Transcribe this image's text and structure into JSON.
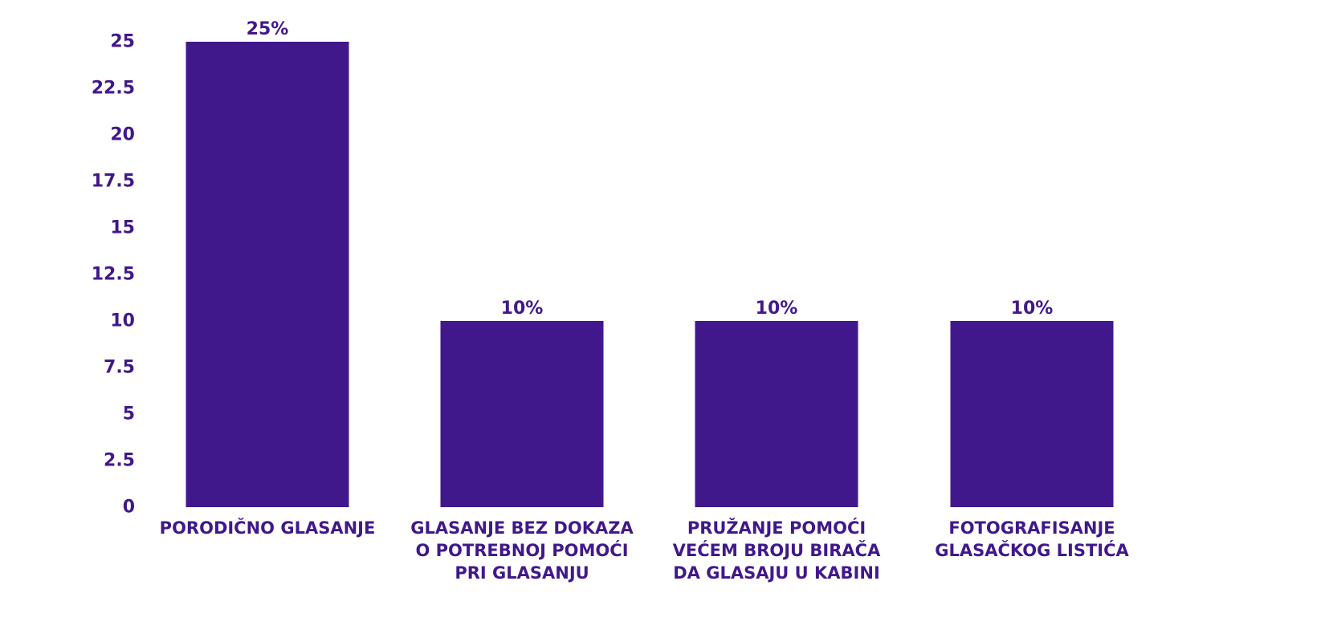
{
  "chart_data": {
    "type": "bar",
    "categories": [
      [
        "PORODIČNO GLASANJE"
      ],
      [
        "GLASANJE BEZ DOKAZA",
        "O POTREBNOJ POMOĆI",
        "PRI GLASANJU"
      ],
      [
        "PRUŽANJE POMOĆI",
        "VEĆEM BROJU BIRAČA",
        "DA GLASAJU U KABINI"
      ],
      [
        "FOTOGRAFISANJE",
        "GLASAČKOG LISTIĆA"
      ]
    ],
    "values": [
      25,
      10,
      10,
      10
    ],
    "value_labels": [
      "25%",
      "10%",
      "10%",
      "10%"
    ],
    "yticks": [
      "0",
      "2.5",
      "5",
      "7.5",
      "10",
      "12.5",
      "15",
      "17.5",
      "20",
      "22.5",
      "25"
    ],
    "ylim": [
      0,
      25
    ],
    "grid": false,
    "legend": "none",
    "colors": {
      "bar": "#41188c",
      "text": "#41188c"
    }
  }
}
